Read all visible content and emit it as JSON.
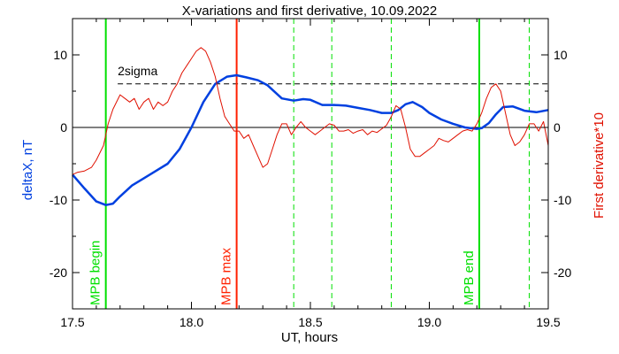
{
  "chart_data": {
    "type": "line",
    "title": "X-variations and first derivative, 10.09.2022",
    "xlabel": "UT, hours",
    "ylabel_left": "deltaX, nT",
    "ylabel_right": "First derivative*10",
    "xlim": [
      17.5,
      19.5
    ],
    "ylim": [
      -25,
      15
    ],
    "x_ticks": [
      {
        "value": 17.5,
        "label": "17.5"
      },
      {
        "value": 18.0,
        "label": "18.0"
      },
      {
        "value": 18.5,
        "label": "18.5"
      },
      {
        "value": 19.0,
        "label": "19.0"
      },
      {
        "value": 19.5,
        "label": "19.5"
      }
    ],
    "y_ticks": [
      {
        "value": 10,
        "label": "10"
      },
      {
        "value": 0,
        "label": "0"
      },
      {
        "value": -10,
        "label": "-10"
      },
      {
        "value": -20,
        "label": "-20"
      }
    ],
    "colors": {
      "deltaX": "#0040e0",
      "derivative": "#e01000",
      "mpb_edges": "#00e000",
      "mpb_max": "#ff2000",
      "ylabel_left": "#0040e0",
      "ylabel_right": "#e01000"
    },
    "zero_line": 0,
    "threshold": {
      "label": "2sigma",
      "value": 6.0
    },
    "vertical_markers": [
      {
        "x": 17.64,
        "label": "MPB begin",
        "color": "#00e000",
        "style": "solid"
      },
      {
        "x": 18.19,
        "label": "MPB max",
        "color": "#ff2000",
        "style": "solid"
      },
      {
        "x": 19.21,
        "label": "MPB end",
        "color": "#00e000",
        "style": "solid"
      },
      {
        "x": 18.43,
        "label": "",
        "color": "#00e000",
        "style": "dashed"
      },
      {
        "x": 18.59,
        "label": "",
        "color": "#00e000",
        "style": "dashed"
      },
      {
        "x": 18.84,
        "label": "",
        "color": "#00e000",
        "style": "dashed"
      },
      {
        "x": 19.42,
        "label": "",
        "color": "#00e000",
        "style": "dashed"
      }
    ],
    "series": [
      {
        "key": "deltaX",
        "x": [
          17.5,
          17.55,
          17.6,
          17.64,
          17.67,
          17.7,
          17.75,
          17.8,
          17.85,
          17.9,
          17.95,
          18.0,
          18.05,
          18.1,
          18.15,
          18.19,
          18.23,
          18.28,
          18.32,
          18.38,
          18.43,
          18.47,
          18.5,
          18.55,
          18.6,
          18.65,
          18.7,
          18.75,
          18.8,
          18.84,
          18.87,
          18.9,
          18.93,
          18.97,
          19.0,
          19.05,
          19.1,
          19.15,
          19.2,
          19.22,
          19.25,
          19.28,
          19.31,
          19.35,
          19.4,
          19.45,
          19.5
        ],
        "y": [
          -6.5,
          -8.4,
          -10.2,
          -10.7,
          -10.5,
          -9.5,
          -8.0,
          -7.0,
          -6.0,
          -5.0,
          -3.0,
          0.0,
          3.5,
          6.0,
          7.0,
          7.2,
          6.9,
          6.5,
          5.8,
          4.0,
          3.7,
          3.9,
          3.8,
          3.1,
          3.1,
          3.0,
          2.7,
          2.4,
          2.0,
          2.0,
          2.4,
          3.2,
          3.5,
          2.8,
          2.0,
          1.1,
          0.5,
          0.0,
          -0.2,
          -0.1,
          0.6,
          1.8,
          2.8,
          2.9,
          2.3,
          2.1,
          2.4
        ]
      },
      {
        "key": "derivative",
        "x": [
          17.5,
          17.52,
          17.55,
          17.58,
          17.6,
          17.63,
          17.65,
          17.67,
          17.7,
          17.72,
          17.74,
          17.76,
          17.78,
          17.8,
          17.82,
          17.84,
          17.86,
          17.88,
          17.9,
          17.92,
          17.94,
          17.96,
          17.98,
          18.0,
          18.02,
          18.04,
          18.06,
          18.08,
          18.1,
          18.12,
          18.14,
          18.16,
          18.18,
          18.2,
          18.22,
          18.24,
          18.26,
          18.28,
          18.3,
          18.32,
          18.34,
          18.36,
          18.38,
          18.4,
          18.42,
          18.44,
          18.46,
          18.48,
          18.5,
          18.52,
          18.54,
          18.56,
          18.58,
          18.6,
          18.62,
          18.64,
          18.66,
          18.68,
          18.7,
          18.72,
          18.74,
          18.76,
          18.78,
          18.8,
          18.82,
          18.84,
          18.86,
          18.88,
          18.9,
          18.92,
          18.94,
          18.96,
          18.98,
          19.0,
          19.02,
          19.04,
          19.06,
          19.08,
          19.1,
          19.12,
          19.14,
          19.16,
          19.18,
          19.2,
          19.22,
          19.24,
          19.26,
          19.28,
          19.3,
          19.32,
          19.34,
          19.36,
          19.38,
          19.4,
          19.42,
          19.44,
          19.46,
          19.48,
          19.5
        ],
        "y": [
          -6.5,
          -6.2,
          -6.0,
          -5.5,
          -4.5,
          -2.5,
          0.5,
          2.5,
          4.5,
          4.0,
          3.5,
          4.0,
          2.5,
          3.5,
          4.0,
          2.5,
          3.5,
          3.0,
          3.5,
          5.0,
          6.0,
          7.5,
          8.5,
          9.5,
          10.5,
          11.0,
          10.5,
          9.0,
          7.0,
          4.0,
          1.5,
          0.5,
          -0.5,
          -0.5,
          -1.5,
          -1.0,
          -2.5,
          -4.0,
          -5.5,
          -5.0,
          -3.0,
          -1.0,
          0.5,
          0.5,
          -1.0,
          0.0,
          0.8,
          0.0,
          -0.5,
          -1.0,
          -0.5,
          0.0,
          0.5,
          0.3,
          -0.5,
          -0.5,
          -0.3,
          -0.8,
          -0.5,
          -0.3,
          -1.0,
          -0.5,
          -0.7,
          -0.2,
          0.3,
          1.5,
          3.0,
          2.5,
          0.0,
          -3.0,
          -4.0,
          -4.0,
          -3.5,
          -3.0,
          -2.5,
          -1.5,
          -1.8,
          -2.0,
          -1.5,
          -1.0,
          -0.5,
          -0.3,
          -0.5,
          0.5,
          2.0,
          4.0,
          5.5,
          6.0,
          5.0,
          2.0,
          -1.0,
          -2.5,
          -2.0,
          -1.0,
          0.5,
          0.5,
          -0.5,
          0.8,
          -2.5
        ]
      }
    ]
  }
}
